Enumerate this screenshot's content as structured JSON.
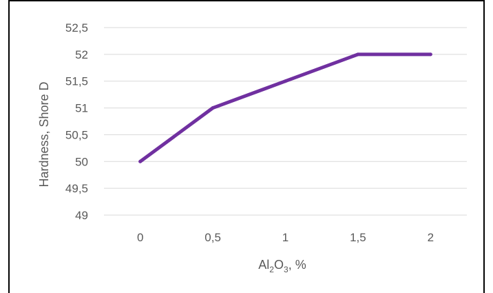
{
  "chart_data": {
    "type": "line",
    "categories": [
      "0",
      "0,5",
      "1",
      "1,5",
      "2"
    ],
    "x": [
      0,
      0.5,
      1,
      1.5,
      2
    ],
    "series": [
      {
        "values": [
          50,
          51,
          51.5,
          52,
          52
        ],
        "color": "#7030a0"
      }
    ],
    "ylabel": "Hardness, Shore D",
    "xlabel": {
      "base": "Al",
      "sub1": "2",
      "mid": "O",
      "sub2": "3",
      "tail": ", %"
    },
    "ylim": [
      49,
      52.5
    ],
    "yticks": [
      49,
      49.5,
      50,
      50.5,
      51,
      51.5,
      52,
      52.5
    ],
    "ytick_labels": [
      "49",
      "49,5",
      "50",
      "50,5",
      "51",
      "51,5",
      "52",
      "52,5"
    ],
    "grid": true,
    "legend": "none"
  }
}
